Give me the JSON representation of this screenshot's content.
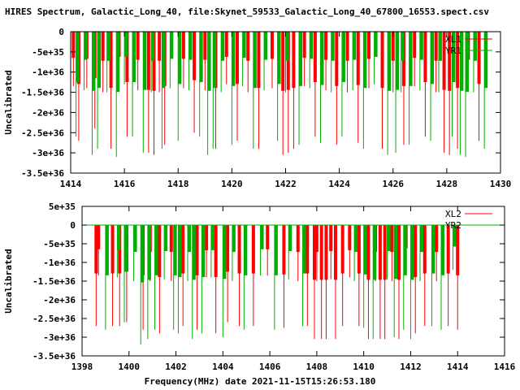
{
  "page": {
    "title": "HIRES Spectrum, Galactic_Long_40, file:Skynet_59533_Galactic_Long_40_67800_16553.spect.csv",
    "xlabel": "Frequency(MHz) date 2021-11-15T15:26:53.180"
  },
  "colors": {
    "red": "#ff0000",
    "green": "#00b000",
    "axis": "#000000"
  },
  "chart_data": [
    {
      "type": "line",
      "title": "",
      "xlabel": "",
      "ylabel": "Uncalibrated",
      "xlim": [
        1414,
        1430
      ],
      "ylim": [
        -3.5e+36,
        0
      ],
      "x_ticks": [
        1414,
        1416,
        1418,
        1420,
        1422,
        1424,
        1426,
        1428,
        1430
      ],
      "y_ticks": [
        {
          "value": 0,
          "label": "0"
        },
        {
          "value": -5e+35,
          "label": "-5e+35"
        },
        {
          "value": -1e+36,
          "label": "-1e+36"
        },
        {
          "value": -1.5e+36,
          "label": "-1.5e+36"
        },
        {
          "value": -2e+36,
          "label": "-2e+36"
        },
        {
          "value": -2.5e+36,
          "label": "-2.5e+36"
        },
        {
          "value": -3e+36,
          "label": "-3e+36"
        },
        {
          "value": -3.5e+36,
          "label": "-3.5e+36"
        }
      ],
      "legend_position": "top-right",
      "series": [
        {
          "name": "XL1",
          "color": "#ff0000",
          "spikes": [
            [
              1414.1,
              -1.35e+36
            ],
            [
              1414.3,
              -2.7e+36
            ],
            [
              1414.6,
              -1.4e+36
            ],
            [
              1414.9,
              -2.4e+36
            ],
            [
              1415.2,
              -1.5e+36
            ],
            [
              1415.5,
              -2.9e+36
            ],
            [
              1415.8,
              -1.3e+36
            ],
            [
              1416.1,
              -2.6e+36
            ],
            [
              1416.5,
              -1.45e+36
            ],
            [
              1416.9,
              -3e+36
            ],
            [
              1417.1,
              -3.05e+36
            ],
            [
              1417.3,
              -1.5e+36
            ],
            [
              1417.5,
              -2.8e+36
            ],
            [
              1418.2,
              -1.4e+36
            ],
            [
              1418.6,
              -2.5e+36
            ],
            [
              1419.0,
              -1.45e+36
            ],
            [
              1419.4,
              -2.9e+36
            ],
            [
              1419.8,
              -1.3e+36
            ],
            [
              1420.2,
              -2.7e+36
            ],
            [
              1420.6,
              -1.5e+36
            ],
            [
              1421.0,
              -2.9e+36
            ],
            [
              1421.5,
              -1.4e+36
            ],
            [
              1421.9,
              -3.05e+36
            ],
            [
              1422.1,
              -3e+36
            ],
            [
              1422.3,
              -2.9e+36
            ],
            [
              1422.7,
              -1.35e+36
            ],
            [
              1423.1,
              -2.6e+36
            ],
            [
              1423.5,
              -1.45e+36
            ],
            [
              1423.9,
              -2.8e+36
            ],
            [
              1424.3,
              -1.5e+36
            ],
            [
              1424.7,
              -2.75e+36
            ],
            [
              1425.1,
              -1.4e+36
            ],
            [
              1425.6,
              -2.9e+36
            ],
            [
              1426.0,
              -1.5e+36
            ],
            [
              1426.4,
              -2.8e+36
            ],
            [
              1426.8,
              -1.35e+36
            ],
            [
              1427.2,
              -2.6e+36
            ],
            [
              1427.6,
              -1.5e+36
            ],
            [
              1427.9,
              -3e+36
            ],
            [
              1428.1,
              -3.05e+36
            ],
            [
              1428.4,
              -2.9e+36
            ],
            [
              1428.8,
              -1.45e+36
            ],
            [
              1429.2,
              -2.7e+36
            ]
          ]
        },
        {
          "name": "YR1",
          "color": "#00b000",
          "spikes": [
            [
              1414.2,
              -2.6e+36
            ],
            [
              1414.5,
              -1.45e+36
            ],
            [
              1414.8,
              -3.05e+36
            ],
            [
              1415.0,
              -2.9e+36
            ],
            [
              1415.35,
              -1.5e+36
            ],
            [
              1415.7,
              -3.1e+36
            ],
            [
              1416.0,
              -1.3e+36
            ],
            [
              1416.3,
              -2.6e+36
            ],
            [
              1416.7,
              -3e+36
            ],
            [
              1417.0,
              -1.5e+36
            ],
            [
              1417.4,
              -2.9e+36
            ],
            [
              1417.7,
              -1.4e+36
            ],
            [
              1418.0,
              -2.7e+36
            ],
            [
              1418.4,
              -1.45e+36
            ],
            [
              1418.8,
              -2.6e+36
            ],
            [
              1419.1,
              -3.05e+36
            ],
            [
              1419.3,
              -2.9e+36
            ],
            [
              1419.6,
              -1.5e+36
            ],
            [
              1420.0,
              -2.8e+36
            ],
            [
              1420.4,
              -1.35e+36
            ],
            [
              1420.8,
              -2.9e+36
            ],
            [
              1421.2,
              -1.45e+36
            ],
            [
              1421.7,
              -2.7e+36
            ],
            [
              1422.0,
              -1.5e+36
            ],
            [
              1422.5,
              -2.8e+36
            ],
            [
              1422.9,
              -1.4e+36
            ],
            [
              1423.3,
              -2.75e+36
            ],
            [
              1423.7,
              -1.5e+36
            ],
            [
              1424.1,
              -2.6e+36
            ],
            [
              1424.5,
              -1.45e+36
            ],
            [
              1424.9,
              -2.9e+36
            ],
            [
              1425.3,
              -1.3e+36
            ],
            [
              1425.8,
              -3.05e+36
            ],
            [
              1426.1,
              -3e+36
            ],
            [
              1426.3,
              -1.5e+36
            ],
            [
              1426.6,
              -2.8e+36
            ],
            [
              1427.0,
              -1.45e+36
            ],
            [
              1427.4,
              -2.7e+36
            ],
            [
              1427.7,
              -1.5e+36
            ],
            [
              1428.2,
              -2.6e+36
            ],
            [
              1428.5,
              -3.05e+36
            ],
            [
              1428.7,
              -3.1e+36
            ],
            [
              1429.0,
              -1.5e+36
            ],
            [
              1429.4,
              -2.9e+36
            ]
          ]
        }
      ]
    },
    {
      "type": "line",
      "title": "",
      "xlabel": "",
      "ylabel": "Uncalibrated",
      "xlim": [
        1398,
        1416
      ],
      "ylim": [
        -3.5e+36,
        5e+35
      ],
      "x_ticks": [
        1398,
        1400,
        1402,
        1404,
        1406,
        1408,
        1410,
        1412,
        1414,
        1416
      ],
      "y_ticks": [
        {
          "value": 5e+35,
          "label": "5e+35"
        },
        {
          "value": 0,
          "label": "0"
        },
        {
          "value": -5e+35,
          "label": "-5e+35"
        },
        {
          "value": -1e+36,
          "label": "-1e+36"
        },
        {
          "value": -1.5e+36,
          "label": "-1.5e+36"
        },
        {
          "value": -2e+36,
          "label": "-2e+36"
        },
        {
          "value": -2.5e+36,
          "label": "-2.5e+36"
        },
        {
          "value": -3e+36,
          "label": "-3e+36"
        },
        {
          "value": -3.5e+36,
          "label": "-3.5e+36"
        }
      ],
      "legend_position": "top-right",
      "series": [
        {
          "name": "XL2",
          "color": "#ff0000",
          "spikes": [
            [
              1398.6,
              -2.7e+36
            ],
            [
              1398.7,
              -1.35e+36
            ],
            [
              1399.3,
              -2.7e+36
            ],
            [
              1399.6,
              -2.7e+36
            ],
            [
              1399.9,
              -2.6e+36
            ],
            [
              1400.6,
              -2.8e+36
            ],
            [
              1400.9,
              -1.5e+36
            ],
            [
              1401.3,
              -2.9e+36
            ],
            [
              1401.8,
              -1.5e+36
            ],
            [
              1402.3,
              -2.7e+36
            ],
            [
              1402.9,
              -2.8e+36
            ],
            [
              1403.3,
              -1.4e+36
            ],
            [
              1403.7,
              -2.9e+36
            ],
            [
              1404.2,
              -2.6e+36
            ],
            [
              1404.7,
              -2.7e+36
            ],
            [
              1405.3,
              -2.7e+36
            ],
            [
              1405.9,
              -1.35e+36
            ],
            [
              1406.6,
              -2.75e+36
            ],
            [
              1407.2,
              -1.5e+36
            ],
            [
              1407.6,
              -2.7e+36
            ],
            [
              1407.9,
              -3.05e+36
            ],
            [
              1408.0,
              -1.5e+36
            ],
            [
              1408.2,
              -3.05e+36
            ],
            [
              1408.4,
              -3.05e+36
            ],
            [
              1408.6,
              -1.45e+36
            ],
            [
              1408.8,
              -3.05e+36
            ],
            [
              1409.1,
              -2.7e+36
            ],
            [
              1409.4,
              -1.4e+36
            ],
            [
              1409.8,
              -2.7e+36
            ],
            [
              1410.2,
              -3.05e+36
            ],
            [
              1410.5,
              -1.5e+36
            ],
            [
              1410.7,
              -3.05e+36
            ],
            [
              1410.9,
              -3.05e+36
            ],
            [
              1411.2,
              -1.5e+36
            ],
            [
              1411.5,
              -3.05e+36
            ],
            [
              1411.8,
              -1.3e+36
            ],
            [
              1412.2,
              -2.9e+36
            ],
            [
              1412.6,
              -2.7e+36
            ],
            [
              1413.1,
              -1.5e+36
            ],
            [
              1413.6,
              -2.7e+36
            ],
            [
              1414.0,
              -2.8e+36
            ]
          ]
        },
        {
          "name": "YR2",
          "color": "#00b000",
          "spikes": [
            [
              1399.0,
              -2.8e+36
            ],
            [
              1399.5,
              -1.4e+36
            ],
            [
              1399.8,
              -2.6e+36
            ],
            [
              1400.2,
              -1.5e+36
            ],
            [
              1400.5,
              -3.2e+36
            ],
            [
              1400.8,
              -3.05e+36
            ],
            [
              1401.1,
              -2.8e+36
            ],
            [
              1401.5,
              -1.45e+36
            ],
            [
              1401.9,
              -2.8e+36
            ],
            [
              1402.1,
              -2.9e+36
            ],
            [
              1402.5,
              -1.5e+36
            ],
            [
              1402.7,
              -3.05e+36
            ],
            [
              1403.1,
              -2.9e+36
            ],
            [
              1403.5,
              -1.4e+36
            ],
            [
              1404.0,
              -3e+36
            ],
            [
              1404.4,
              -1.5e+36
            ],
            [
              1404.9,
              -2.8e+36
            ],
            [
              1405.6,
              -1.35e+36
            ],
            [
              1406.2,
              -2.8e+36
            ],
            [
              1406.8,
              -1.45e+36
            ],
            [
              1407.4,
              -2.7e+36
            ],
            [
              1409.6,
              -1.5e+36
            ],
            [
              1410.0,
              -2.75e+36
            ],
            [
              1410.4,
              -3.05e+36
            ],
            [
              1411.0,
              -1.45e+36
            ],
            [
              1411.3,
              -3e+36
            ],
            [
              1411.7,
              -2.8e+36
            ],
            [
              1412.0,
              -3.05e+36
            ],
            [
              1412.4,
              -1.5e+36
            ],
            [
              1412.9,
              -2.7e+36
            ],
            [
              1413.3,
              -2.8e+36
            ],
            [
              1413.8,
              -1.2e+36
            ]
          ]
        }
      ]
    }
  ]
}
